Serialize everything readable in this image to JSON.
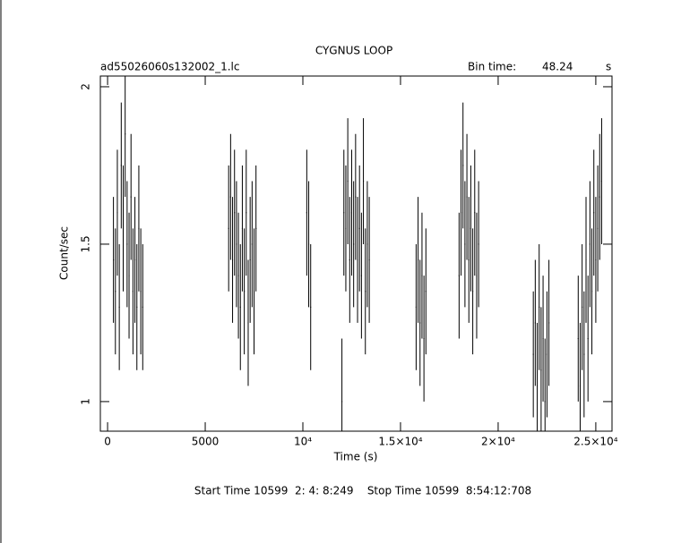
{
  "chart_data": {
    "type": "errorbar",
    "title": "CYGNUS LOOP",
    "file": "ad55026060s132002_1.lc",
    "bin_label": "Bin time:",
    "bin_time": 48.24,
    "bin_unit": "s",
    "xlabel": "Time (s)",
    "ylabel": "Count/sec",
    "footer": "Start Time 10599  2: 4: 8:249    Stop Time 10599  8:54:12:708",
    "xlim": [
      -370,
      25830
    ],
    "ylim": [
      0.906,
      2.034
    ],
    "xticks": [
      0,
      5000,
      {
        "value": 10000,
        "label": "10⁴"
      },
      {
        "value": 15000,
        "label": "1.5×10⁴"
      },
      {
        "value": 20000,
        "label": "2×10⁴"
      },
      {
        "value": 25000,
        "label": "2.5×10⁴"
      }
    ],
    "yticks": [
      1,
      1.5,
      2
    ],
    "color": "#000000",
    "x": [
      300,
      400,
      500,
      600,
      700,
      800,
      900,
      1000,
      1100,
      1200,
      1300,
      1400,
      1500,
      1600,
      1700,
      1800,
      6200,
      6300,
      6400,
      6500,
      6600,
      6700,
      6800,
      6900,
      7000,
      7100,
      7200,
      7300,
      7400,
      7500,
      7600,
      10200,
      10300,
      10400,
      12000,
      12100,
      12200,
      12300,
      12400,
      12500,
      12600,
      12700,
      12800,
      12900,
      13000,
      13100,
      13200,
      13300,
      13400,
      15800,
      15900,
      16000,
      16100,
      16200,
      16300,
      18000,
      18100,
      18200,
      18300,
      18400,
      18500,
      18600,
      18700,
      18800,
      18900,
      19000,
      21800,
      21900,
      22000,
      22100,
      22200,
      22300,
      22400,
      22500,
      22600,
      24100,
      24200,
      24300,
      24400,
      24500,
      24600,
      24700,
      24800,
      24900,
      25000,
      25100,
      25200,
      25300
    ],
    "values": [
      1.45,
      1.35,
      1.6,
      1.3,
      1.75,
      1.55,
      1.85,
      1.5,
      1.4,
      1.65,
      1.35,
      1.45,
      1.3,
      1.55,
      1.35,
      1.3,
      1.55,
      1.65,
      1.45,
      1.6,
      1.5,
      1.4,
      1.3,
      1.55,
      1.35,
      1.6,
      1.25,
      1.45,
      1.5,
      1.35,
      1.55,
      1.6,
      1.5,
      1.3,
      1.0,
      1.6,
      1.55,
      1.7,
      1.45,
      1.6,
      1.5,
      1.65,
      1.45,
      1.55,
      1.4,
      1.7,
      1.35,
      1.5,
      1.45,
      1.3,
      1.45,
      1.25,
      1.4,
      1.2,
      1.35,
      1.4,
      1.6,
      1.75,
      1.5,
      1.65,
      1.45,
      1.55,
      1.35,
      1.6,
      1.4,
      1.5,
      1.15,
      1.25,
      1.05,
      1.3,
      1.1,
      1.2,
      1.0,
      1.15,
      1.25,
      1.2,
      1.05,
      1.3,
      1.15,
      1.45,
      1.2,
      1.5,
      1.35,
      1.6,
      1.45,
      1.55,
      1.65,
      1.7
    ],
    "errors": [
      0.2,
      0.2,
      0.2,
      0.2,
      0.2,
      0.2,
      0.2,
      0.2,
      0.2,
      0.2,
      0.2,
      0.2,
      0.2,
      0.2,
      0.2,
      0.2,
      0.2,
      0.2,
      0.2,
      0.2,
      0.2,
      0.2,
      0.2,
      0.2,
      0.2,
      0.2,
      0.2,
      0.2,
      0.2,
      0.2,
      0.2,
      0.2,
      0.2,
      0.2,
      0.2,
      0.2,
      0.2,
      0.2,
      0.2,
      0.2,
      0.2,
      0.2,
      0.2,
      0.2,
      0.2,
      0.2,
      0.2,
      0.2,
      0.2,
      0.2,
      0.2,
      0.2,
      0.2,
      0.2,
      0.2,
      0.2,
      0.2,
      0.2,
      0.2,
      0.2,
      0.2,
      0.2,
      0.2,
      0.2,
      0.2,
      0.2,
      0.2,
      0.2,
      0.2,
      0.2,
      0.2,
      0.2,
      0.2,
      0.2,
      0.2,
      0.2,
      0.2,
      0.2,
      0.2,
      0.2,
      0.2,
      0.2,
      0.2,
      0.2,
      0.2,
      0.2,
      0.2,
      0.2
    ]
  }
}
